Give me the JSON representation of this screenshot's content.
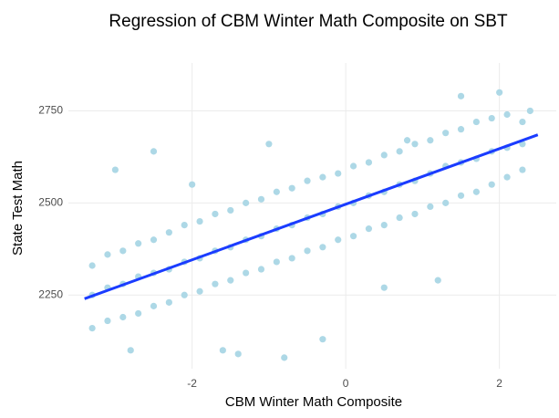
{
  "chart_data": {
    "type": "scatter",
    "title": "Regression of CBM Winter Math Composite on SBT",
    "x_label": "CBM Winter Math Composite",
    "y_label": "State Test Math",
    "xlim": [
      -3.61,
      2.74
    ],
    "ylim": [
      2050,
      2880
    ],
    "xticks": [
      -2,
      0,
      2
    ],
    "yticks": [
      2250,
      2500,
      2750
    ],
    "grid": true,
    "points": {
      "color": "#add8e6",
      "x": [
        -3.3,
        -3.1,
        -2.9,
        -2.7,
        -2.5,
        -2.3,
        -2.1,
        -1.9,
        -1.7,
        -1.5,
        -1.3,
        -1.1,
        -0.9,
        -0.7,
        -0.5,
        -0.3,
        -0.1,
        0.1,
        0.3,
        0.5,
        0.7,
        0.9,
        1.1,
        1.3,
        1.5,
        1.7,
        1.9,
        2.1,
        2.3,
        -3.3,
        -3.1,
        -2.9,
        -2.7,
        -2.5,
        -2.3,
        -2.1,
        -1.9,
        -1.7,
        -1.5,
        -1.3,
        -1.1,
        -0.9,
        -0.7,
        -0.5,
        -0.3,
        -0.1,
        0.1,
        0.3,
        0.5,
        0.7,
        0.9,
        1.1,
        1.3,
        1.5,
        1.7,
        1.9,
        2.1,
        2.3,
        -3.3,
        -3.1,
        -2.9,
        -2.7,
        -2.5,
        -2.3,
        -2.1,
        -1.9,
        -1.7,
        -1.5,
        -1.3,
        -1.1,
        -0.9,
        -0.7,
        -0.5,
        -0.3,
        -0.1,
        0.1,
        0.3,
        0.5,
        0.7,
        0.9,
        1.1,
        1.3,
        1.5,
        1.7,
        1.9,
        2.1,
        2.3,
        -3.0,
        -2.5,
        -2.8,
        -1.4,
        -0.8,
        -1.0,
        0.5,
        1.5,
        2.0,
        2.4,
        -1.6,
        0.8,
        1.2,
        -2.0,
        -0.3
      ],
      "y": [
        2330,
        2360,
        2370,
        2390,
        2400,
        2420,
        2440,
        2450,
        2470,
        2480,
        2500,
        2510,
        2530,
        2540,
        2560,
        2570,
        2580,
        2600,
        2610,
        2630,
        2640,
        2660,
        2670,
        2690,
        2700,
        2720,
        2730,
        2740,
        2720,
        2250,
        2270,
        2280,
        2300,
        2310,
        2320,
        2340,
        2350,
        2370,
        2380,
        2400,
        2410,
        2430,
        2440,
        2460,
        2470,
        2490,
        2500,
        2520,
        2530,
        2550,
        2560,
        2580,
        2600,
        2610,
        2620,
        2640,
        2650,
        2660,
        2160,
        2180,
        2190,
        2200,
        2220,
        2230,
        2250,
        2260,
        2280,
        2290,
        2310,
        2320,
        2340,
        2350,
        2370,
        2380,
        2400,
        2410,
        2430,
        2440,
        2460,
        2470,
        2490,
        2500,
        2520,
        2530,
        2550,
        2570,
        2590,
        2590,
        2640,
        2100,
        2090,
        2080,
        2660,
        2270,
        2790,
        2800,
        2750,
        2100,
        2670,
        2290,
        2550,
        2130
      ]
    },
    "fit_line": {
      "color": "#1a3cff",
      "x": [
        -3.4,
        2.5
      ],
      "y": [
        2240,
        2685
      ]
    }
  }
}
